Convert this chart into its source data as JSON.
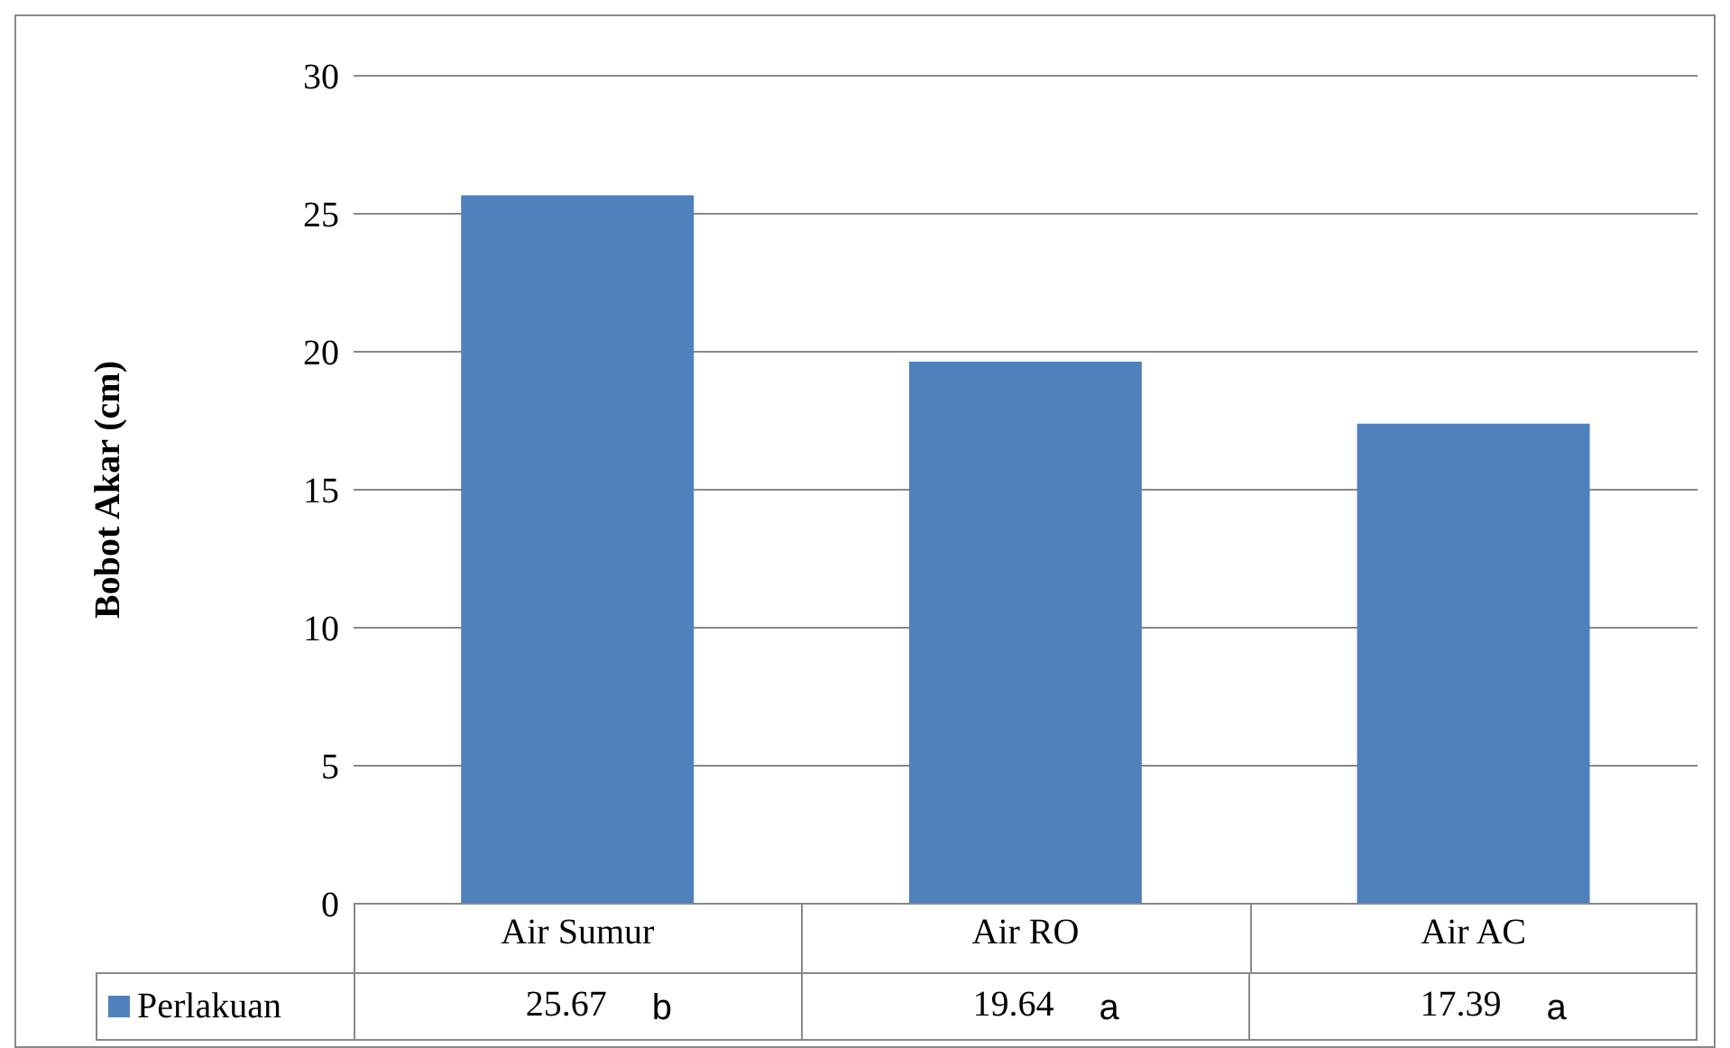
{
  "chart_data": {
    "type": "bar",
    "ylabel": "Bobot Akar (cm)",
    "categories": [
      "Air Sumur",
      "Air RO",
      "Air AC"
    ],
    "series": [
      {
        "name": "Perlakuan",
        "color": "#4f81bd",
        "values": [
          25.67,
          19.64,
          17.39
        ]
      }
    ],
    "ylim": [
      0,
      30
    ],
    "yticks": [
      0,
      5,
      10,
      15,
      20,
      25,
      30
    ],
    "grid": "y",
    "legend": "bottom",
    "data_labels": true,
    "annotations": [
      "b",
      "a",
      "a"
    ]
  }
}
